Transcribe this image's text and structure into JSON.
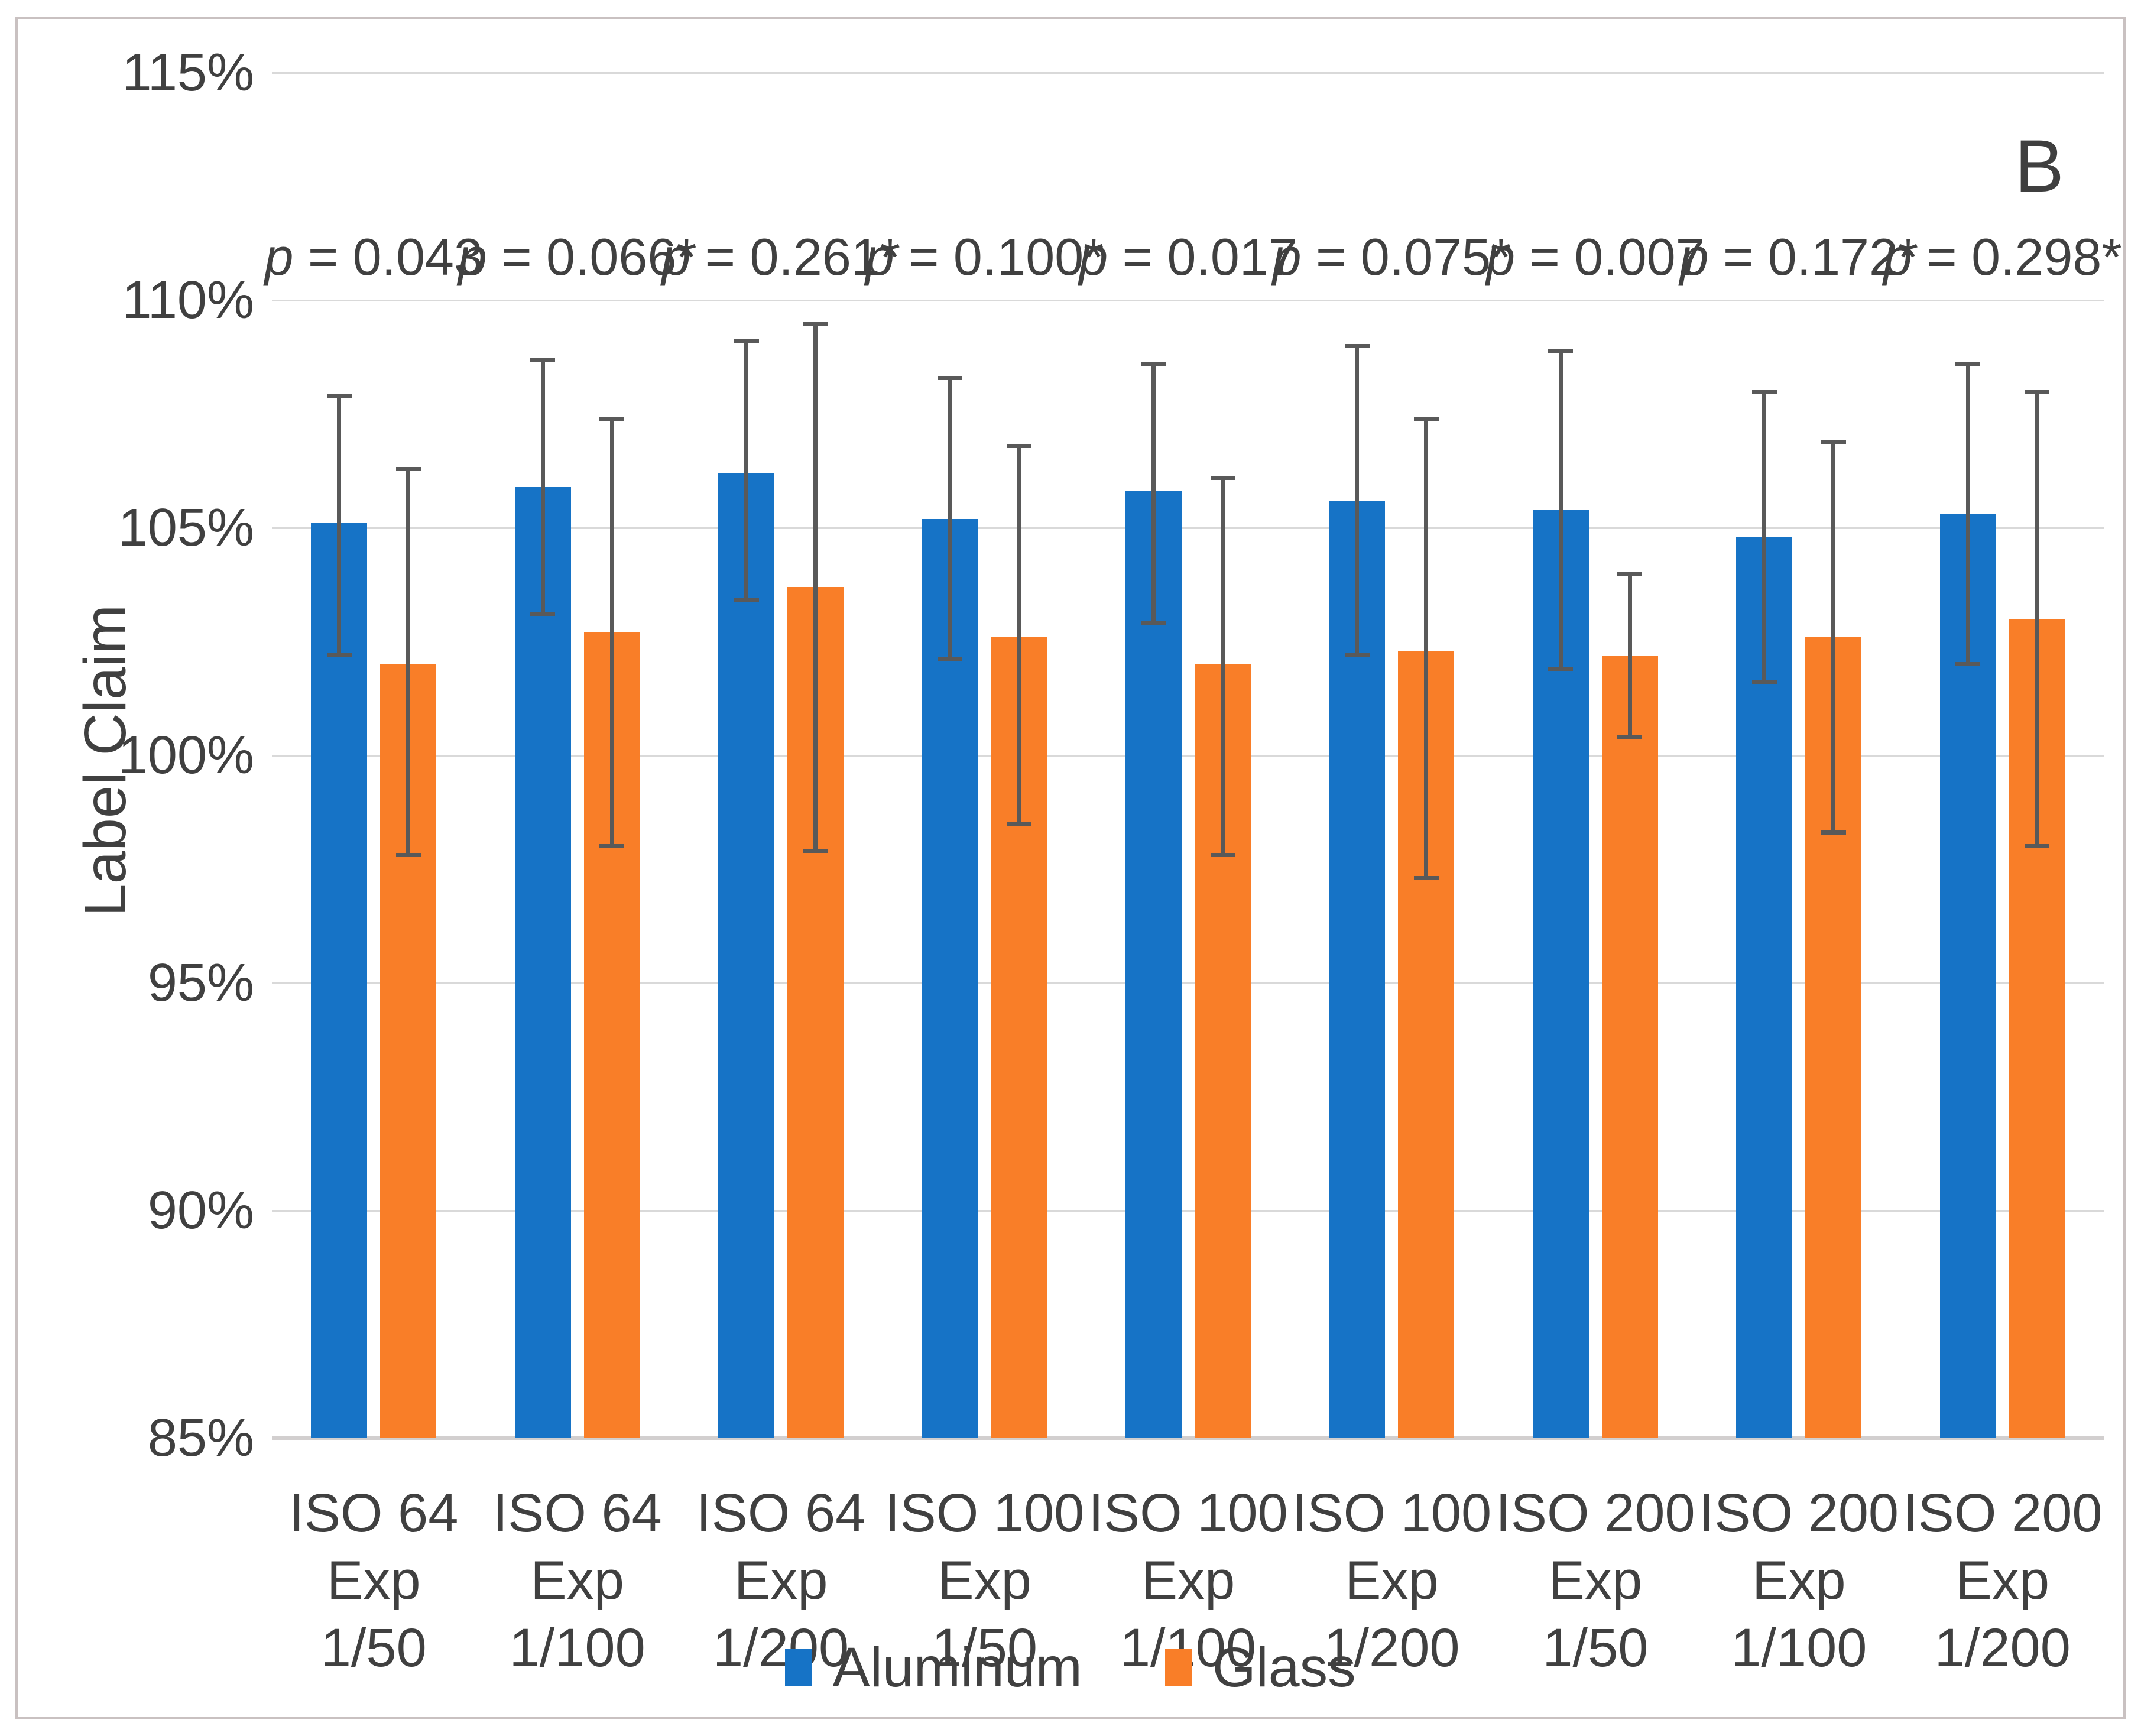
{
  "panel_label": "B",
  "y_axis": {
    "title": "Label Claim",
    "ticks": [
      {
        "label": "115%",
        "value": 115
      },
      {
        "label": "110%",
        "value": 110
      },
      {
        "label": "105%",
        "value": 105
      },
      {
        "label": "100%",
        "value": 100
      },
      {
        "label": "95%",
        "value": 95
      },
      {
        "label": "90%",
        "value": 90
      },
      {
        "label": "85%",
        "value": 85
      }
    ]
  },
  "legend": [
    {
      "label": "Aluminum",
      "color": "#1673C6"
    },
    {
      "label": "Glass",
      "color": "#F97E28"
    }
  ],
  "colors": {
    "aluminum": "#1673C6",
    "glass": "#F97E28",
    "error_bar": "#595959",
    "gridline": "#d9d9d9",
    "text": "#404040"
  },
  "chart_data": {
    "type": "bar",
    "title": "",
    "xlabel": "",
    "ylabel": "Label Claim",
    "ylim": [
      85,
      115
    ],
    "ytick_step": 5,
    "grid": true,
    "legend_position": "bottom",
    "panel": "B",
    "categories": [
      "ISO 64 Exp 1/50",
      "ISO 64 Exp 1/100",
      "ISO 64 Exp 1/200",
      "ISO 100 Exp 1/50",
      "ISO 100 Exp 1/100",
      "ISO 100 Exp 1/200",
      "ISO 200 Exp 1/50",
      "ISO 200 Exp 1/100",
      "ISO 200 Exp 1/200"
    ],
    "category_label_lines": [
      [
        "ISO 64 Exp",
        "1/50"
      ],
      [
        "ISO 64 Exp",
        "1/100"
      ],
      [
        "ISO 64 Exp",
        "1/200"
      ],
      [
        "ISO 100",
        "Exp 1/50"
      ],
      [
        "ISO 100",
        "Exp 1/100"
      ],
      [
        "ISO 100",
        "Exp 1/200"
      ],
      [
        "ISO 200",
        "Exp 1/50"
      ],
      [
        "ISO 200",
        "Exp 1/100"
      ],
      [
        "ISO 200",
        "Exp 1/200"
      ]
    ],
    "p_values": [
      "p = 0.043",
      "p = 0.066*",
      "p = 0.261*",
      "p = 0.100*",
      "p = 0.017",
      "p = 0.075*",
      "p = 0.007",
      "p = 0.172*",
      "p = 0.298*"
    ],
    "series": [
      {
        "name": "Aluminum",
        "color": "#1673C6",
        "values": [
          105.1,
          105.9,
          106.2,
          105.2,
          105.8,
          105.6,
          105.4,
          104.8,
          105.3
        ],
        "error_high": [
          107.9,
          108.7,
          109.1,
          108.3,
          108.6,
          109.0,
          108.9,
          108.0,
          108.6
        ],
        "error_low": [
          102.2,
          103.1,
          103.4,
          102.1,
          102.9,
          102.2,
          101.9,
          101.6,
          102.0
        ]
      },
      {
        "name": "Glass",
        "color": "#F97E28",
        "values": [
          102.0,
          102.7,
          103.7,
          102.6,
          102.0,
          102.3,
          102.2,
          102.6,
          103.0
        ],
        "error_high": [
          106.3,
          107.4,
          109.5,
          106.8,
          106.1,
          107.4,
          104.0,
          106.9,
          108.0
        ],
        "error_low": [
          97.8,
          98.0,
          97.9,
          98.5,
          97.8,
          97.3,
          100.4,
          98.3,
          98.0
        ]
      }
    ]
  }
}
